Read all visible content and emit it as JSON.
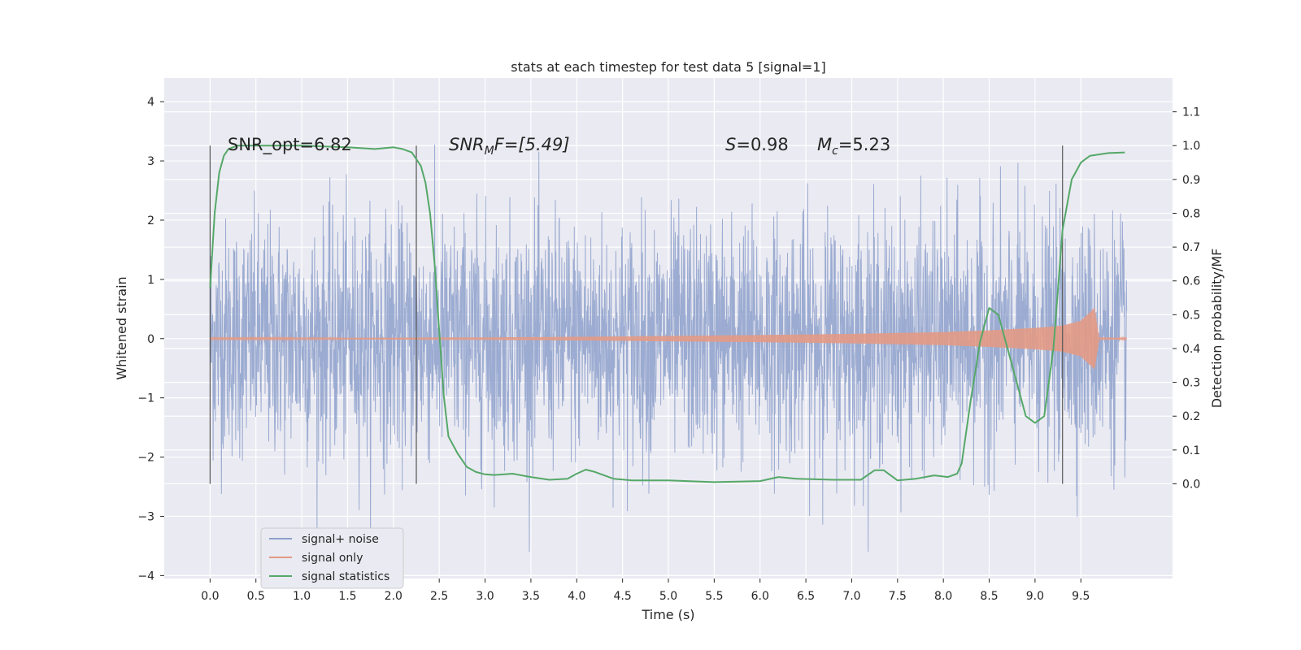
{
  "chart_data": {
    "type": "line",
    "title": "stats at each timestep for test data 5 [signal=1]",
    "xlabel": "Time (s)",
    "ylabel_left": "Whitened strain",
    "ylabel_right": "Detection probability/MF",
    "xlim": [
      -0.5,
      10.5
    ],
    "ylim_left": [
      -4.05,
      4.4
    ],
    "ylim_right": [
      -0.28,
      1.2
    ],
    "xticks": [
      "0.0",
      "0.5",
      "1.0",
      "1.5",
      "2.0",
      "2.5",
      "3.0",
      "3.5",
      "4.0",
      "4.5",
      "5.0",
      "5.5",
      "6.0",
      "6.5",
      "7.0",
      "7.5",
      "8.0",
      "8.5",
      "9.0",
      "9.5"
    ],
    "yticks_left": [
      "4",
      "3",
      "2",
      "1",
      "0",
      "−1",
      "−2",
      "−3",
      "−4"
    ],
    "yticks_right": [
      "1.1",
      "1.0",
      "0.9",
      "0.8",
      "0.7",
      "0.6",
      "0.5",
      "0.4",
      "0.3",
      "0.2",
      "0.1",
      "0.0"
    ],
    "grid": true,
    "legend_position": "lower-left",
    "annotations": {
      "snr_opt": "SNR_opt=6.82",
      "snr_mf_base": "SNR",
      "snr_mf_sub": "M",
      "snr_mf_rest": "F=[5.49]",
      "s_var": "S",
      "s_val": "=0.98",
      "mc_var": "M",
      "mc_sub": "c",
      "mc_val": "=5.23"
    },
    "vertical_markers_x": [
      0.0,
      2.25,
      9.3
    ],
    "series": [
      {
        "name": "signal+ noise",
        "color": "#8da0cb",
        "description_range": "noise amplitude about -3.6 to 4.0 whitened strain over 0.0 to 10.0 s"
      },
      {
        "name": "signal only",
        "color": "#e39a85",
        "envelope": {
          "x": [
            0.0,
            2.0,
            3.0,
            4.0,
            5.0,
            6.0,
            7.0,
            8.0,
            8.5,
            9.0,
            9.3,
            9.5,
            9.65,
            9.7,
            10.0
          ],
          "amp": [
            0.01,
            0.015,
            0.02,
            0.03,
            0.045,
            0.06,
            0.08,
            0.11,
            0.14,
            0.18,
            0.22,
            0.3,
            0.52,
            0.02,
            0.01
          ]
        }
      },
      {
        "name": "signal statistics",
        "color": "#55a868",
        "x": [
          0.0,
          0.05,
          0.1,
          0.15,
          0.2,
          0.3,
          0.5,
          0.8,
          1.0,
          1.5,
          1.8,
          2.0,
          2.1,
          2.2,
          2.3,
          2.35,
          2.4,
          2.45,
          2.5,
          2.55,
          2.6,
          2.7,
          2.8,
          2.9,
          3.0,
          3.1,
          3.3,
          3.5,
          3.7,
          3.9,
          4.0,
          4.1,
          4.2,
          4.4,
          4.6,
          5.0,
          5.5,
          6.0,
          6.2,
          6.4,
          6.8,
          7.1,
          7.25,
          7.35,
          7.5,
          7.7,
          7.9,
          8.05,
          8.15,
          8.2,
          8.3,
          8.4,
          8.5,
          8.6,
          8.7,
          8.8,
          8.9,
          9.0,
          9.1,
          9.2,
          9.3,
          9.4,
          9.5,
          9.6,
          9.8,
          9.98
        ],
        "y": [
          0.58,
          0.8,
          0.92,
          0.97,
          0.99,
          1.0,
          1.0,
          1.0,
          1.0,
          0.995,
          0.99,
          0.995,
          0.99,
          0.98,
          0.94,
          0.89,
          0.8,
          0.65,
          0.45,
          0.26,
          0.14,
          0.09,
          0.05,
          0.035,
          0.028,
          0.026,
          0.03,
          0.02,
          0.012,
          0.015,
          0.03,
          0.042,
          0.035,
          0.015,
          0.01,
          0.01,
          0.005,
          0.008,
          0.02,
          0.015,
          0.012,
          0.012,
          0.04,
          0.04,
          0.01,
          0.015,
          0.025,
          0.02,
          0.03,
          0.06,
          0.25,
          0.42,
          0.52,
          0.5,
          0.4,
          0.3,
          0.2,
          0.18,
          0.2,
          0.4,
          0.75,
          0.9,
          0.95,
          0.97,
          0.978,
          0.98
        ]
      }
    ]
  }
}
